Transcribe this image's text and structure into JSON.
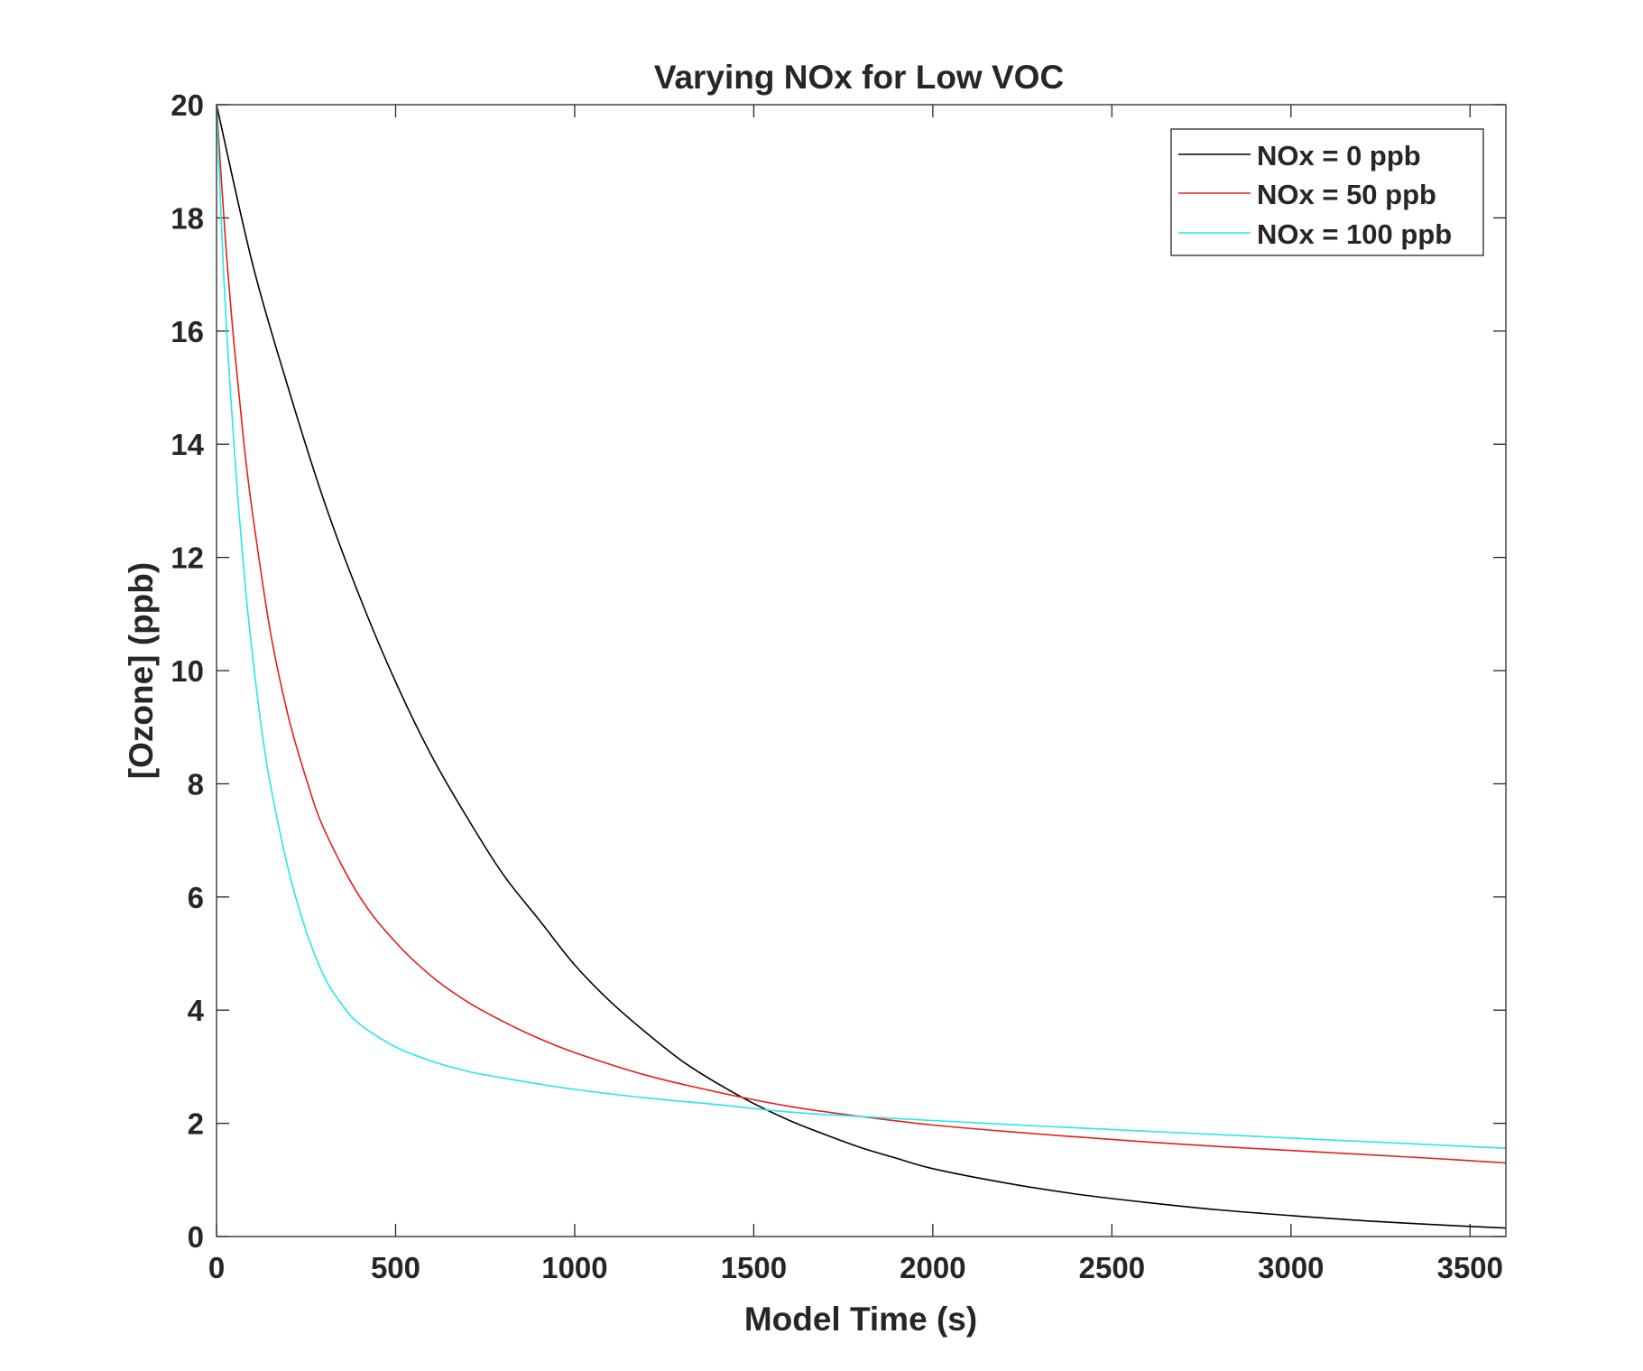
{
  "chart_data": {
    "type": "line",
    "title": "Varying NOx for Low VOC",
    "xlabel": "Model Time (s)",
    "ylabel": "[Ozone] (ppb)",
    "xlim": [
      0,
      3600
    ],
    "ylim": [
      0,
      20
    ],
    "xticks": [
      0,
      500,
      1000,
      1500,
      2000,
      2500,
      3000,
      3500
    ],
    "yticks": [
      0,
      2,
      4,
      6,
      8,
      10,
      12,
      14,
      16,
      18,
      20
    ],
    "grid": false,
    "legend_position": "top-right",
    "series": [
      {
        "name": "NOx = 0 ppb",
        "color": "#000000",
        "x": [
          0,
          100,
          200,
          300,
          400,
          500,
          600,
          700,
          800,
          900,
          1000,
          1100,
          1200,
          1300,
          1400,
          1500,
          1600,
          1700,
          1800,
          1900,
          2000,
          2200,
          2400,
          2600,
          2800,
          3000,
          3200,
          3400,
          3600
        ],
        "y": [
          20,
          17.2,
          15.0,
          13.0,
          11.3,
          9.8,
          8.5,
          7.4,
          6.4,
          5.6,
          4.8,
          4.15,
          3.6,
          3.1,
          2.7,
          2.35,
          2.05,
          1.8,
          1.57,
          1.38,
          1.2,
          0.95,
          0.75,
          0.6,
          0.47,
          0.37,
          0.28,
          0.21,
          0.15
        ]
      },
      {
        "name": "NOx = 50 ppb",
        "color": "#e0201b",
        "x": [
          0,
          25,
          50,
          75,
          100,
          150,
          200,
          250,
          300,
          400,
          500,
          600,
          700,
          800,
          900,
          1000,
          1200,
          1400,
          1600,
          1800,
          2000,
          2200,
          2400,
          2600,
          2800,
          3000,
          3200,
          3400,
          3600
        ],
        "y": [
          20,
          17.6,
          15.7,
          14.1,
          12.8,
          10.7,
          9.2,
          8.1,
          7.2,
          6.0,
          5.2,
          4.6,
          4.15,
          3.8,
          3.5,
          3.25,
          2.85,
          2.55,
          2.3,
          2.12,
          1.97,
          1.86,
          1.76,
          1.67,
          1.59,
          1.52,
          1.45,
          1.38,
          1.3
        ]
      },
      {
        "name": "NOx = 100 ppb",
        "color": "#26e8e8",
        "x": [
          0,
          20,
          40,
          60,
          80,
          100,
          125,
          150,
          200,
          250,
          300,
          350,
          400,
          500,
          600,
          700,
          800,
          1000,
          1200,
          1400,
          1600,
          1800,
          2000,
          2400,
          2800,
          3200,
          3600
        ],
        "y": [
          20,
          17.0,
          14.8,
          13.0,
          11.5,
          10.3,
          9.0,
          8.0,
          6.5,
          5.4,
          4.6,
          4.1,
          3.75,
          3.35,
          3.1,
          2.92,
          2.8,
          2.6,
          2.45,
          2.33,
          2.2,
          2.12,
          2.05,
          1.92,
          1.8,
          1.68,
          1.56
        ]
      }
    ]
  }
}
